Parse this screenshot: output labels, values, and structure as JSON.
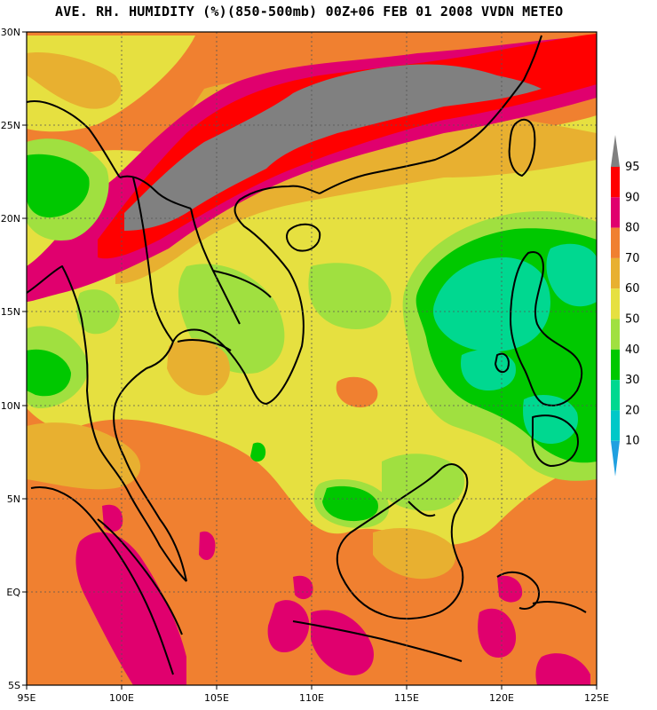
{
  "title": "AVE. RH. HUMIDITY (%)(850-500mb) 00Z+06 FEB 01 2008 VVDN METEO",
  "axes": {
    "lon_labels": [
      "95E",
      "100E",
      "105E",
      "110E",
      "115E",
      "120E",
      "125E"
    ],
    "lat_labels": [
      "30N",
      "25N",
      "20N",
      "15N",
      "10N",
      "5N",
      "EQ",
      "5S"
    ],
    "lon_range": [
      95,
      125
    ],
    "lat_range": [
      -5,
      30
    ]
  },
  "colorbar": {
    "labels": [
      "95",
      "90",
      "80",
      "70",
      "60",
      "50",
      "40",
      "30",
      "20",
      "10"
    ],
    "colors": [
      "#ff0000",
      "#e0006e",
      "#f08030",
      "#e8b030",
      "#e6e040",
      "#a0e040",
      "#00c800",
      "#00d890",
      "#00c8c8",
      "#20a0e0"
    ],
    "over_color": "#808080",
    "under_color": "#20a0e0"
  },
  "chart_data": {
    "type": "heatmap",
    "title": "AVE. RH. HUMIDITY (%)(850-500mb) 00Z+06 FEB 01 2008 VVDN METEO",
    "x_range": [
      95,
      125
    ],
    "y_range": [
      -5,
      30
    ],
    "grid": true,
    "legend": "right"
  },
  "land": {
    "coast_color": "#000000"
  }
}
